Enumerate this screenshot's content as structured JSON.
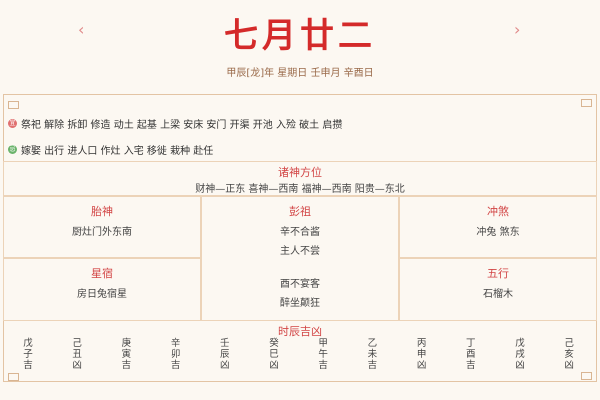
{
  "header": {
    "prev": "‹",
    "next": "›",
    "title": "七月廿二",
    "subtitle": "甲辰[龙]年 星期日 壬申月 辛酉日"
  },
  "yi": {
    "icon": "宜",
    "items": "祭祀 解除 拆卸 修造 动土 起基 上梁 安床 安门 开渠 开池 入殓 破土 启攒",
    "color": "#e07070"
  },
  "ji": {
    "icon": "忌",
    "items": "嫁娶 出行 进人口 作灶 入宅 移徙 栽种 赴任",
    "color": "#6bb36b"
  },
  "zhushen": {
    "title": "诸神方位",
    "value": "财神—正东 喜神—西南 福神—西南 阳贵—东北"
  },
  "taishen": {
    "title": "胎神",
    "value": "厨灶门外东南"
  },
  "pengzu": {
    "title": "彭祖",
    "lines": [
      "辛不合酱",
      "主人不尝",
      "酉不宴客",
      "醉坐颠狂"
    ]
  },
  "chongsha": {
    "title": "冲煞",
    "value": "冲兔 煞东"
  },
  "xingxiu": {
    "title": "星宿",
    "value": "房日兔宿星"
  },
  "wuxing": {
    "title": "五行",
    "value": "石榴木"
  },
  "hours": {
    "title": "时辰吉凶",
    "items": [
      "戊子吉",
      "己丑凶",
      "庚寅吉",
      "辛卯吉",
      "壬辰凶",
      "癸巳凶",
      "甲午吉",
      "乙未吉",
      "丙申凶",
      "丁酉吉",
      "戊戌凶",
      "己亥凶"
    ]
  }
}
